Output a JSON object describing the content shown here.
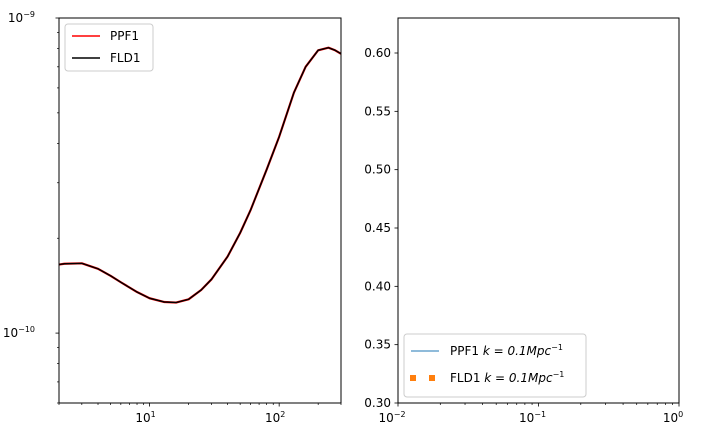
{
  "chart_data": [
    {
      "type": "line",
      "xscale": "log",
      "yscale": "log",
      "xlim": [
        2,
        300
      ],
      "ylim": [
        6e-11,
        1e-09
      ],
      "x_ticks": [
        {
          "value": 10,
          "base": "10",
          "exp": "1"
        },
        {
          "value": 100,
          "base": "10",
          "exp": "2"
        }
      ],
      "y_ticks": [
        {
          "value": 1e-10,
          "base": "10",
          "exp": "−10"
        },
        {
          "value": 1e-09,
          "base": "10",
          "exp": "−9"
        }
      ],
      "legend": {
        "position": "upper-left"
      },
      "series": [
        {
          "name": "PPF1",
          "color": "#ff0000",
          "x": [
            2,
            2.2,
            3,
            4,
            5,
            6,
            8,
            10,
            13,
            16,
            20,
            25,
            30,
            40,
            50,
            60,
            80,
            100,
            130,
            160,
            200,
            240,
            270,
            300
          ],
          "y": [
            1.65e-10,
            1.66e-10,
            1.665e-10,
            1.6e-10,
            1.52e-10,
            1.45e-10,
            1.35e-10,
            1.29e-10,
            1.255e-10,
            1.25e-10,
            1.28e-10,
            1.37e-10,
            1.48e-10,
            1.75e-10,
            2.08e-10,
            2.45e-10,
            3.3e-10,
            4.2e-10,
            5.8e-10,
            7e-10,
            7.9e-10,
            8.05e-10,
            7.9e-10,
            7.7e-10
          ]
        },
        {
          "name": "FLD1",
          "color": "#000000",
          "x": [
            2,
            2.2,
            3,
            4,
            5,
            6,
            8,
            10,
            13,
            16,
            20,
            25,
            30,
            40,
            50,
            60,
            80,
            100,
            130,
            160,
            200,
            240,
            270,
            300
          ],
          "y": [
            1.65e-10,
            1.66e-10,
            1.665e-10,
            1.6e-10,
            1.52e-10,
            1.45e-10,
            1.35e-10,
            1.29e-10,
            1.255e-10,
            1.25e-10,
            1.28e-10,
            1.37e-10,
            1.48e-10,
            1.75e-10,
            2.08e-10,
            2.45e-10,
            3.3e-10,
            4.2e-10,
            5.8e-10,
            7e-10,
            7.9e-10,
            8.05e-10,
            7.9e-10,
            7.7e-10
          ]
        }
      ]
    },
    {
      "type": "line",
      "xscale": "log",
      "yscale": "linear",
      "xlim": [
        0.01,
        1
      ],
      "ylim": [
        0.3,
        0.63
      ],
      "x_ticks": [
        {
          "value": 0.01,
          "base": "10",
          "exp": "−2"
        },
        {
          "value": 0.1,
          "base": "10",
          "exp": "−1"
        },
        {
          "value": 1,
          "base": "10",
          "exp": "0"
        }
      ],
      "y_ticks": [
        {
          "value": 0.3,
          "label": "0.30"
        },
        {
          "value": 0.35,
          "label": "0.35"
        },
        {
          "value": 0.4,
          "label": "0.40"
        },
        {
          "value": 0.45,
          "label": "0.45"
        },
        {
          "value": 0.5,
          "label": "0.50"
        },
        {
          "value": 0.55,
          "label": "0.55"
        },
        {
          "value": 0.6,
          "label": "0.60"
        }
      ],
      "legend": {
        "position": "lower-left"
      },
      "series": [
        {
          "name_prefix": "PPF1 ",
          "name_math": "k = 0.1Mpc",
          "name_sup": "−1",
          "color": "#1f77b4",
          "style": "line",
          "x": [],
          "y": []
        },
        {
          "name_prefix": "FLD1 ",
          "name_math": "k = 0.1Mpc",
          "name_sup": "−1",
          "color": "#ff7f0e",
          "style": "dotted",
          "x": [],
          "y": []
        }
      ]
    }
  ]
}
